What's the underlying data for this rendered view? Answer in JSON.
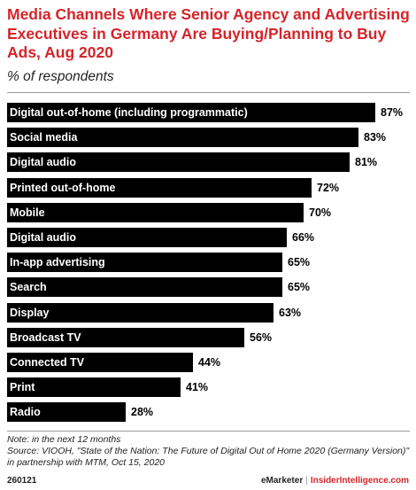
{
  "chart_data": {
    "type": "bar",
    "orientation": "horizontal",
    "title": "Media Channels Where Senior Agency and Advertising Executives in Germany Are Buying/Planning to Buy Ads, Aug 2020",
    "subtitle": "% of respondents",
    "categories": [
      "Digital out-of-home (including programmatic)",
      "Social media",
      "Digital audio",
      "Printed out-of-home",
      "Mobile",
      "Digital audio",
      "In-app advertising",
      "Search",
      "Display",
      "Broadcast TV",
      "Connected TV",
      "Print",
      "Radio"
    ],
    "values": [
      87,
      83,
      81,
      72,
      70,
      66,
      65,
      65,
      63,
      56,
      44,
      41,
      28
    ],
    "value_labels": [
      "87%",
      "83%",
      "81%",
      "72%",
      "70%",
      "66%",
      "65%",
      "65%",
      "63%",
      "56%",
      "44%",
      "41%",
      "28%"
    ],
    "xlim": [
      0,
      87
    ],
    "grid": false,
    "bar_color": "#000000"
  },
  "note": "Note: in the next 12 months",
  "source": "Source: VIOOH, \"State of the Nation: The Future of Digital Out of Home 2020 (Germany Version)\" in partnership with MTM, Oct 15, 2020",
  "footer": {
    "id": "260121",
    "brand": "eMarketer",
    "separator": "|",
    "site": "InsiderIntelligence.com"
  },
  "colors": {
    "title": "#d5242a",
    "bar": "#000000"
  }
}
